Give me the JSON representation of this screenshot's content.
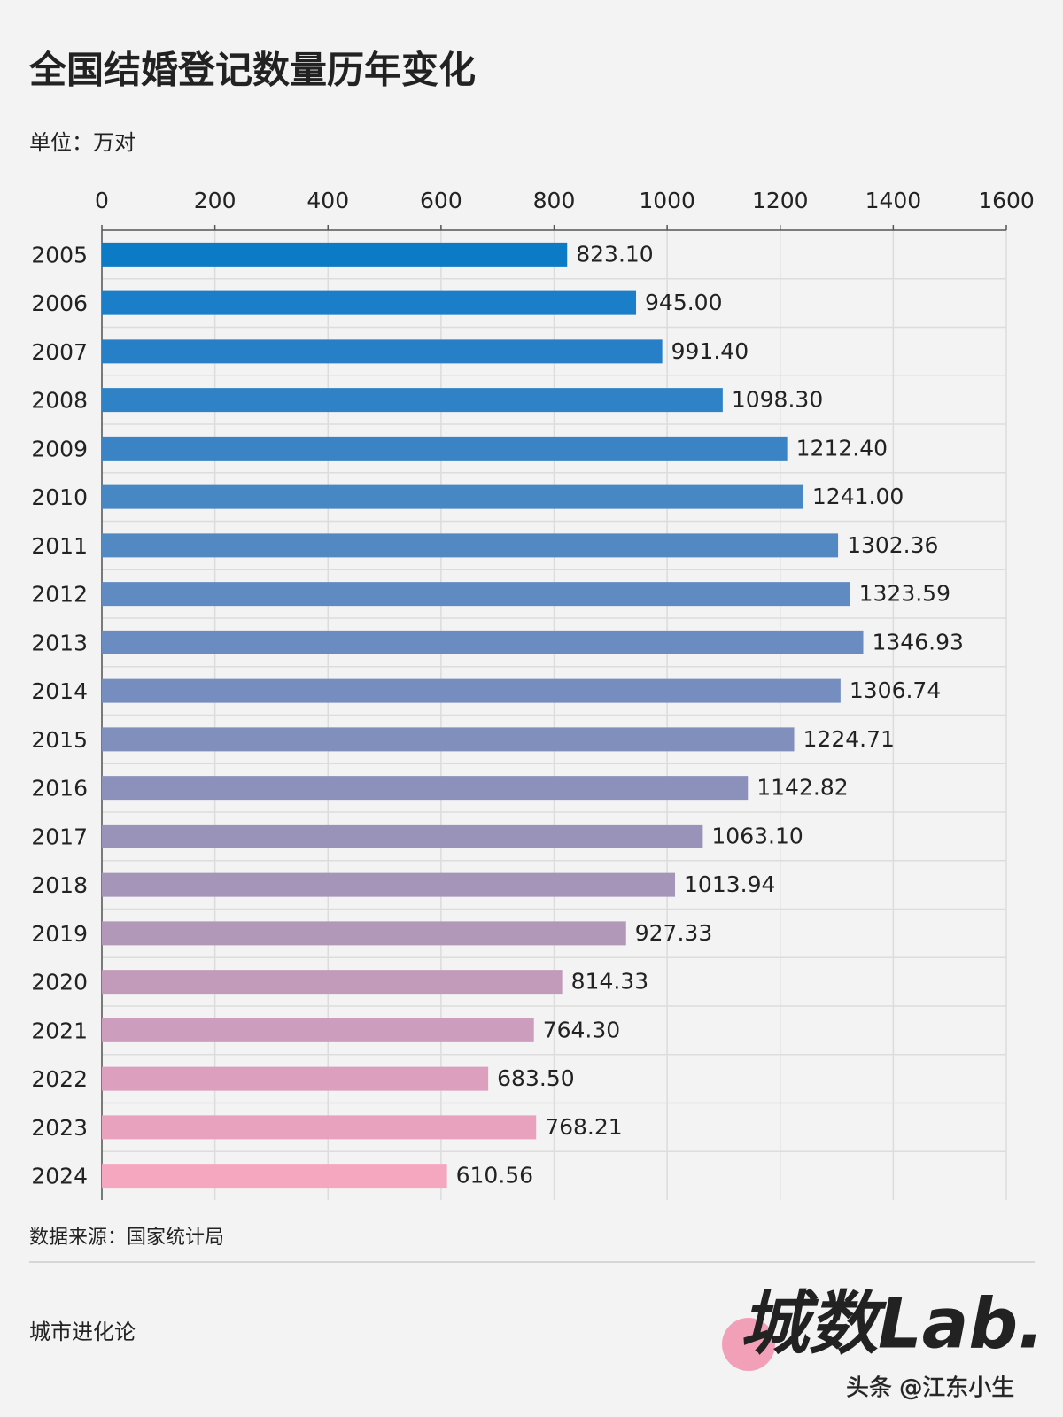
{
  "chart_data": {
    "type": "bar",
    "orientation": "horizontal",
    "title": "全国结婚登记数量历年变化",
    "subtitle": "单位：万对",
    "source": "数据来源：国家统计局",
    "footer": "城市进化论",
    "logo": "城数Lab.",
    "watermark": "头条 @江东小生",
    "categories": [
      "2005",
      "2006",
      "2007",
      "2008",
      "2009",
      "2010",
      "2011",
      "2012",
      "2013",
      "2014",
      "2015",
      "2016",
      "2017",
      "2018",
      "2019",
      "2020",
      "2021",
      "2022",
      "2023",
      "2024"
    ],
    "values": [
      823.1,
      945,
      991.4,
      1098.3,
      1212.4,
      1241,
      1302.36,
      1323.59,
      1346.93,
      1306.74,
      1224.71,
      1142.82,
      1063.1,
      1013.94,
      927.33,
      814.33,
      764.3,
      683.5,
      768.21,
      610.56
    ],
    "value_labels": [
      "823.10",
      "945.00",
      "991.40",
      "1098.30",
      "1212.40",
      "1241.00",
      "1302.36",
      "1323.59",
      "1346.93",
      "1306.74",
      "1224.71",
      "1142.82",
      "1063.10",
      "1013.94",
      "927.33",
      "814.33",
      "764.30",
      "683.50",
      "768.21",
      "610.56"
    ],
    "colors": [
      "#0b7bc6",
      "#1a7ec8",
      "#2780c7",
      "#3082c6",
      "#3a84c6",
      "#4787c4",
      "#5389c3",
      "#5f8bc2",
      "#6a8cc0",
      "#758ebf",
      "#818fbd",
      "#8c91bb",
      "#9993b9",
      "#a595b8",
      "#b298b8",
      "#c29bbb",
      "#cd9dbd",
      "#dc9fbe",
      "#e8a2be",
      "#f6a7c0"
    ],
    "xlim": [
      0,
      1600
    ],
    "xticks": [
      0,
      200,
      400,
      600,
      800,
      1000,
      1200,
      1400,
      1600
    ],
    "grid": true
  }
}
